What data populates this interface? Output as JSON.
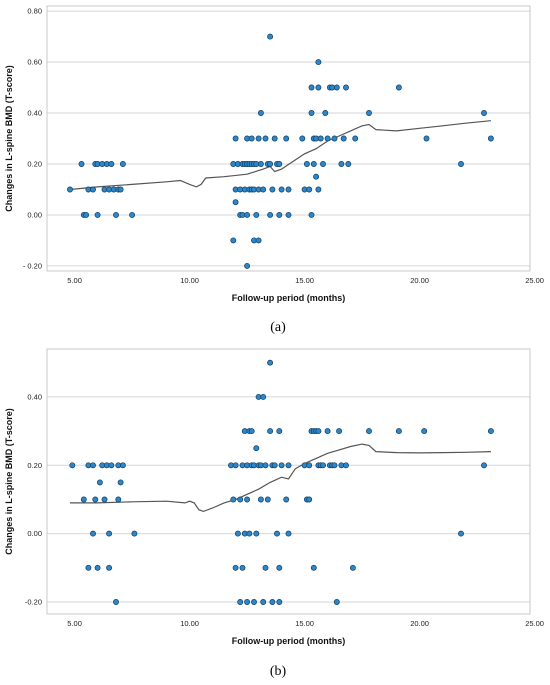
{
  "chart_data": [
    {
      "type": "scatter",
      "panel_label": "(a)",
      "xlabel": "Follow-up period (months)",
      "ylabel": "Changes in L-spine BMD (T-score)",
      "xlim": [
        3.8,
        24.8
      ],
      "ylim": [
        -0.22,
        0.82
      ],
      "xticks": [
        "5.00",
        "10.00",
        "15.00",
        "20.00",
        "25.00"
      ],
      "yticks": [
        "- 0.20",
        "0.00",
        "0.20",
        "0.40",
        "0.60",
        "0.80"
      ],
      "grid": "horizontal",
      "points": [
        [
          4.8,
          0.1
        ],
        [
          5.3,
          0.2
        ],
        [
          5.4,
          0.0
        ],
        [
          5.5,
          0.0
        ],
        [
          5.6,
          0.1
        ],
        [
          5.8,
          0.1
        ],
        [
          5.9,
          0.2
        ],
        [
          6.0,
          0.0
        ],
        [
          6.0,
          0.2
        ],
        [
          6.2,
          0.2
        ],
        [
          6.3,
          0.1
        ],
        [
          6.4,
          0.2
        ],
        [
          6.5,
          0.1
        ],
        [
          6.6,
          0.2
        ],
        [
          6.7,
          0.1
        ],
        [
          6.8,
          0.0
        ],
        [
          6.9,
          0.1
        ],
        [
          7.1,
          0.2
        ],
        [
          7.0,
          0.1
        ],
        [
          7.5,
          0.0
        ],
        [
          11.9,
          0.2
        ],
        [
          11.9,
          -0.1
        ],
        [
          12.0,
          0.3
        ],
        [
          12.0,
          0.1
        ],
        [
          12.0,
          0.05
        ],
        [
          12.1,
          0.2
        ],
        [
          12.2,
          0.1
        ],
        [
          12.2,
          0.0
        ],
        [
          12.3,
          0.2
        ],
        [
          12.3,
          0.0
        ],
        [
          12.4,
          0.2
        ],
        [
          12.4,
          0.1
        ],
        [
          12.5,
          0.3
        ],
        [
          12.5,
          0.2
        ],
        [
          12.5,
          0.0
        ],
        [
          12.5,
          -0.2
        ],
        [
          12.6,
          0.2
        ],
        [
          12.6,
          0.1
        ],
        [
          12.7,
          0.3
        ],
        [
          12.7,
          0.2
        ],
        [
          12.7,
          0.1
        ],
        [
          12.8,
          0.2
        ],
        [
          12.8,
          0.1
        ],
        [
          12.8,
          -0.1
        ],
        [
          12.9,
          0.2
        ],
        [
          12.9,
          0.0
        ],
        [
          13.0,
          0.3
        ],
        [
          13.0,
          0.1
        ],
        [
          13.0,
          -0.1
        ],
        [
          13.1,
          0.4
        ],
        [
          13.1,
          0.2
        ],
        [
          13.2,
          0.1
        ],
        [
          13.3,
          0.3
        ],
        [
          13.4,
          0.2
        ],
        [
          13.5,
          0.2
        ],
        [
          13.5,
          0.0
        ],
        [
          13.5,
          0.7
        ],
        [
          13.6,
          0.1
        ],
        [
          13.7,
          0.3
        ],
        [
          13.8,
          0.2
        ],
        [
          13.9,
          0.0
        ],
        [
          13.9,
          0.2
        ],
        [
          14.0,
          0.1
        ],
        [
          14.2,
          0.3
        ],
        [
          14.3,
          0.1
        ],
        [
          14.3,
          0.0
        ],
        [
          14.9,
          0.3
        ],
        [
          15.0,
          0.1
        ],
        [
          15.1,
          0.2
        ],
        [
          15.2,
          0.1
        ],
        [
          15.3,
          0.0
        ],
        [
          15.3,
          0.4
        ],
        [
          15.3,
          0.5
        ],
        [
          15.4,
          0.3
        ],
        [
          15.4,
          0.2
        ],
        [
          15.5,
          0.3
        ],
        [
          15.5,
          0.15
        ],
        [
          15.6,
          0.1
        ],
        [
          15.6,
          0.6
        ],
        [
          15.6,
          0.5
        ],
        [
          15.7,
          0.3
        ],
        [
          15.8,
          0.2
        ],
        [
          15.9,
          0.4
        ],
        [
          16.0,
          0.3
        ],
        [
          16.1,
          0.5
        ],
        [
          16.2,
          0.5
        ],
        [
          16.3,
          0.3
        ],
        [
          16.4,
          0.5
        ],
        [
          16.6,
          0.2
        ],
        [
          16.7,
          0.3
        ],
        [
          16.8,
          0.5
        ],
        [
          16.9,
          0.2
        ],
        [
          17.2,
          0.3
        ],
        [
          17.8,
          0.4
        ],
        [
          19.1,
          0.5
        ],
        [
          20.3,
          0.3
        ],
        [
          21.8,
          0.2
        ],
        [
          22.8,
          0.4
        ],
        [
          23.1,
          0.3
        ]
      ],
      "fit_line": [
        [
          4.8,
          0.1
        ],
        [
          6.0,
          0.11
        ],
        [
          7.5,
          0.12
        ],
        [
          9.0,
          0.13
        ],
        [
          9.6,
          0.135
        ],
        [
          10.0,
          0.12
        ],
        [
          10.3,
          0.11
        ],
        [
          10.5,
          0.12
        ],
        [
          10.7,
          0.145
        ],
        [
          11.5,
          0.15
        ],
        [
          12.5,
          0.16
        ],
        [
          13.2,
          0.18
        ],
        [
          13.5,
          0.19
        ],
        [
          13.7,
          0.17
        ],
        [
          14.0,
          0.18
        ],
        [
          14.5,
          0.21
        ],
        [
          15.0,
          0.24
        ],
        [
          15.5,
          0.26
        ],
        [
          16.0,
          0.29
        ],
        [
          16.5,
          0.31
        ],
        [
          17.0,
          0.33
        ],
        [
          17.5,
          0.35
        ],
        [
          17.8,
          0.355
        ],
        [
          18.1,
          0.335
        ],
        [
          19.0,
          0.33
        ],
        [
          20.0,
          0.34
        ],
        [
          21.0,
          0.35
        ],
        [
          22.0,
          0.36
        ],
        [
          23.1,
          0.37
        ]
      ]
    },
    {
      "type": "scatter",
      "panel_label": "(b)",
      "xlabel": "Follow-up period (months)",
      "ylabel": "Changes in L-spine BMD (T-score)",
      "xlim": [
        3.8,
        24.8
      ],
      "ylim": [
        -0.235,
        0.54
      ],
      "xticks": [
        "5.00",
        "10.00",
        "15.00",
        "20.00",
        "25.00"
      ],
      "yticks": [
        "-0.20",
        "0.00",
        "0.20",
        "0.40"
      ],
      "grid": "horizontal",
      "points": [
        [
          4.9,
          0.2
        ],
        [
          5.4,
          0.1
        ],
        [
          5.6,
          0.2
        ],
        [
          5.6,
          -0.1
        ],
        [
          5.8,
          0.2
        ],
        [
          5.8,
          0.0
        ],
        [
          5.9,
          0.1
        ],
        [
          6.0,
          -0.1
        ],
        [
          6.1,
          0.15
        ],
        [
          6.2,
          0.2
        ],
        [
          6.3,
          0.1
        ],
        [
          6.4,
          0.2
        ],
        [
          6.5,
          0.0
        ],
        [
          6.5,
          -0.1
        ],
        [
          6.6,
          0.2
        ],
        [
          6.8,
          -0.2
        ],
        [
          6.9,
          0.2
        ],
        [
          6.9,
          0.1
        ],
        [
          7.0,
          0.15
        ],
        [
          7.1,
          0.2
        ],
        [
          7.6,
          0.0
        ],
        [
          11.8,
          0.2
        ],
        [
          11.9,
          0.1
        ],
        [
          12.0,
          -0.1
        ],
        [
          12.0,
          0.2
        ],
        [
          12.1,
          0.0
        ],
        [
          12.2,
          -0.2
        ],
        [
          12.2,
          0.1
        ],
        [
          12.3,
          -0.1
        ],
        [
          12.3,
          0.2
        ],
        [
          12.4,
          0.3
        ],
        [
          12.4,
          0.0
        ],
        [
          12.5,
          0.2
        ],
        [
          12.5,
          0.1
        ],
        [
          12.5,
          -0.2
        ],
        [
          12.6,
          0.3
        ],
        [
          12.6,
          0.0
        ],
        [
          12.7,
          0.2
        ],
        [
          12.7,
          0.3
        ],
        [
          12.8,
          0.2
        ],
        [
          12.8,
          -0.2
        ],
        [
          12.9,
          0.25
        ],
        [
          12.9,
          0.0
        ],
        [
          13.0,
          0.2
        ],
        [
          13.0,
          0.4
        ],
        [
          13.1,
          0.2
        ],
        [
          13.1,
          0.1
        ],
        [
          13.2,
          0.4
        ],
        [
          13.2,
          -0.2
        ],
        [
          13.3,
          0.2
        ],
        [
          13.3,
          -0.1
        ],
        [
          13.4,
          0.1
        ],
        [
          13.5,
          0.5
        ],
        [
          13.5,
          0.3
        ],
        [
          13.6,
          0.2
        ],
        [
          13.6,
          -0.2
        ],
        [
          13.7,
          0.2
        ],
        [
          13.8,
          0.0
        ],
        [
          13.9,
          0.3
        ],
        [
          13.9,
          -0.1
        ],
        [
          13.9,
          -0.2
        ],
        [
          14.0,
          0.2
        ],
        [
          14.2,
          0.1
        ],
        [
          14.3,
          0.2
        ],
        [
          14.3,
          0.0
        ],
        [
          15.0,
          0.2
        ],
        [
          15.1,
          0.1
        ],
        [
          15.2,
          0.2
        ],
        [
          15.2,
          0.1
        ],
        [
          15.3,
          0.3
        ],
        [
          15.4,
          0.3
        ],
        [
          15.4,
          -0.1
        ],
        [
          15.5,
          0.3
        ],
        [
          15.6,
          0.3
        ],
        [
          15.6,
          0.2
        ],
        [
          15.7,
          0.2
        ],
        [
          15.8,
          0.2
        ],
        [
          16.0,
          0.3
        ],
        [
          16.1,
          0.2
        ],
        [
          16.2,
          0.2
        ],
        [
          16.3,
          0.2
        ],
        [
          16.4,
          -0.2
        ],
        [
          16.5,
          0.3
        ],
        [
          16.6,
          0.2
        ],
        [
          16.8,
          0.2
        ],
        [
          17.1,
          -0.1
        ],
        [
          17.8,
          0.3
        ],
        [
          19.1,
          0.3
        ],
        [
          20.2,
          0.3
        ],
        [
          21.8,
          0.0
        ],
        [
          22.8,
          0.2
        ],
        [
          23.1,
          0.3
        ]
      ],
      "fit_line": [
        [
          4.8,
          0.09
        ],
        [
          6.0,
          0.09
        ],
        [
          7.5,
          0.093
        ],
        [
          9.0,
          0.095
        ],
        [
          9.8,
          0.09
        ],
        [
          10.0,
          0.095
        ],
        [
          10.2,
          0.09
        ],
        [
          10.4,
          0.07
        ],
        [
          10.6,
          0.065
        ],
        [
          11.0,
          0.075
        ],
        [
          11.5,
          0.09
        ],
        [
          12.0,
          0.1
        ],
        [
          12.5,
          0.115
        ],
        [
          13.0,
          0.13
        ],
        [
          13.5,
          0.15
        ],
        [
          14.0,
          0.165
        ],
        [
          14.3,
          0.16
        ],
        [
          14.6,
          0.19
        ],
        [
          15.0,
          0.205
        ],
        [
          15.5,
          0.22
        ],
        [
          16.0,
          0.235
        ],
        [
          16.5,
          0.245
        ],
        [
          17.0,
          0.255
        ],
        [
          17.5,
          0.262
        ],
        [
          17.8,
          0.258
        ],
        [
          18.1,
          0.24
        ],
        [
          19.0,
          0.237
        ],
        [
          20.0,
          0.236
        ],
        [
          21.0,
          0.237
        ],
        [
          22.0,
          0.238
        ],
        [
          23.1,
          0.24
        ]
      ]
    }
  ]
}
